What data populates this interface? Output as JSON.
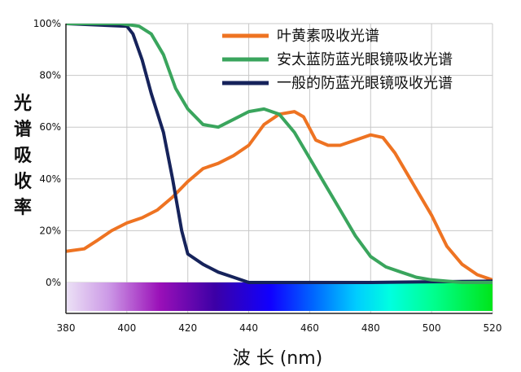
{
  "chart_data": {
    "type": "line",
    "xlabel": "波 长 (nm)",
    "ylabel": "光谱吸收率",
    "x_ticks": [
      "380",
      "400",
      "420",
      "440",
      "460",
      "480",
      "500",
      "520"
    ],
    "y_ticks": [
      "0%",
      "20%",
      "40%",
      "60%",
      "80%",
      "100%"
    ],
    "xlim": [
      380,
      520
    ],
    "ylim": [
      0,
      100
    ],
    "grid": true,
    "legend_position": "top-right",
    "spectrum_band": {
      "x_range": [
        380,
        520
      ],
      "y_range": [
        -11,
        0
      ]
    },
    "series": [
      {
        "name": "叶黄素吸收光谱",
        "color": "#ee7322",
        "points": [
          [
            380,
            12
          ],
          [
            386,
            13
          ],
          [
            390,
            16
          ],
          [
            395,
            20
          ],
          [
            400,
            23
          ],
          [
            405,
            25
          ],
          [
            410,
            28
          ],
          [
            415,
            33
          ],
          [
            420,
            39
          ],
          [
            425,
            44
          ],
          [
            430,
            46
          ],
          [
            435,
            49
          ],
          [
            440,
            53
          ],
          [
            445,
            61
          ],
          [
            450,
            65
          ],
          [
            455,
            66
          ],
          [
            458,
            64
          ],
          [
            462,
            55
          ],
          [
            466,
            53
          ],
          [
            470,
            53
          ],
          [
            475,
            55
          ],
          [
            480,
            57
          ],
          [
            484,
            56
          ],
          [
            488,
            50
          ],
          [
            493,
            40
          ],
          [
            500,
            26
          ],
          [
            505,
            14
          ],
          [
            510,
            7
          ],
          [
            515,
            3
          ],
          [
            520,
            1
          ]
        ]
      },
      {
        "name": "安太蓝防蓝光眼镜吸收光谱",
        "color": "#3aa55d",
        "points": [
          [
            380,
            100
          ],
          [
            398,
            100
          ],
          [
            404,
            99
          ],
          [
            408,
            96
          ],
          [
            412,
            88
          ],
          [
            416,
            75
          ],
          [
            420,
            67
          ],
          [
            425,
            61
          ],
          [
            430,
            60
          ],
          [
            435,
            63
          ],
          [
            440,
            66
          ],
          [
            445,
            67
          ],
          [
            450,
            65
          ],
          [
            455,
            58
          ],
          [
            460,
            48
          ],
          [
            465,
            38
          ],
          [
            470,
            28
          ],
          [
            475,
            18
          ],
          [
            480,
            10
          ],
          [
            485,
            6
          ],
          [
            490,
            4
          ],
          [
            495,
            2
          ],
          [
            500,
            1
          ],
          [
            510,
            0
          ],
          [
            520,
            0
          ]
        ]
      },
      {
        "name": "一般的防蓝光眼镜吸收光谱",
        "color": "#16235b",
        "points": [
          [
            380,
            100
          ],
          [
            400,
            99
          ],
          [
            402,
            96
          ],
          [
            405,
            86
          ],
          [
            408,
            73
          ],
          [
            412,
            58
          ],
          [
            415,
            40
          ],
          [
            418,
            20
          ],
          [
            420,
            11
          ],
          [
            425,
            7
          ],
          [
            430,
            4
          ],
          [
            435,
            2
          ],
          [
            440,
            0
          ],
          [
            480,
            0
          ],
          [
            520,
            0.5
          ]
        ]
      }
    ]
  }
}
